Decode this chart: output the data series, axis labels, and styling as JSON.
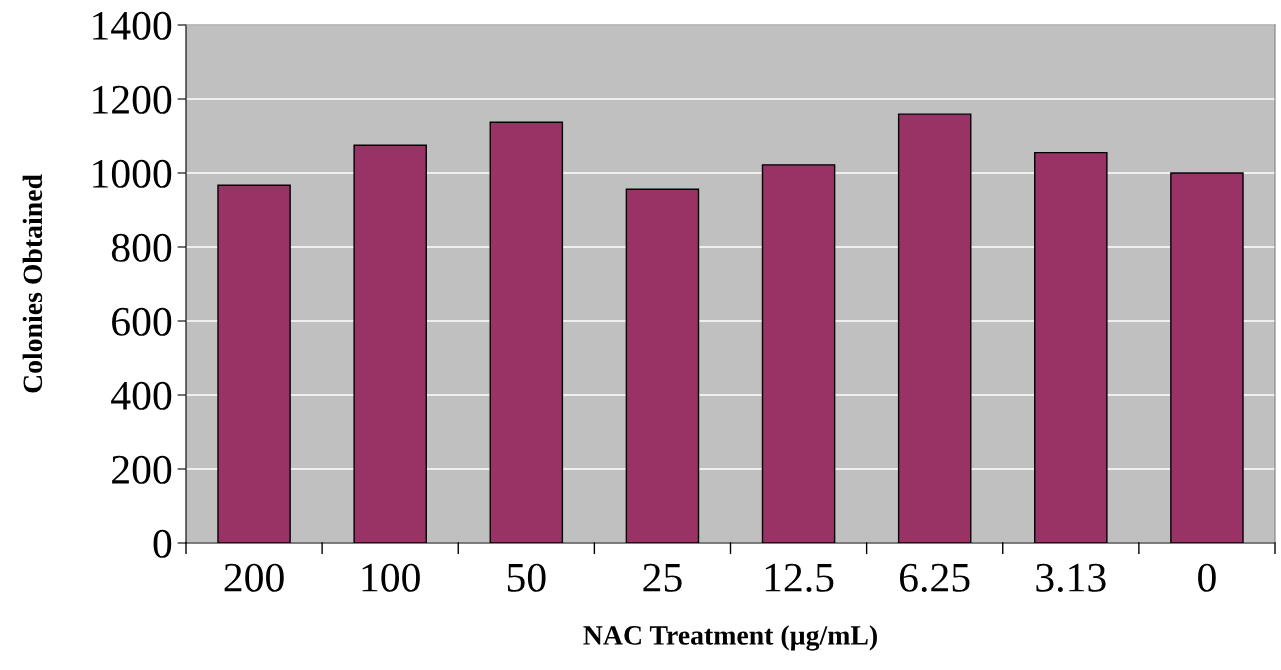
{
  "chart_data": {
    "type": "bar",
    "xlabel": "NAC Treatment (µg/mL)",
    "ylabel": "Colonies Obtained",
    "categories": [
      "200",
      "100",
      "50",
      "25",
      "12.5",
      "6.25",
      "3.13",
      "0"
    ],
    "values": [
      967,
      1075,
      1137,
      956,
      1022,
      1159,
      1055,
      1000
    ],
    "color": "#993366",
    "ylim": [
      0,
      1400
    ],
    "yticks": [
      0,
      200,
      400,
      600,
      800,
      1000,
      1200,
      1400
    ],
    "grid": "y"
  }
}
